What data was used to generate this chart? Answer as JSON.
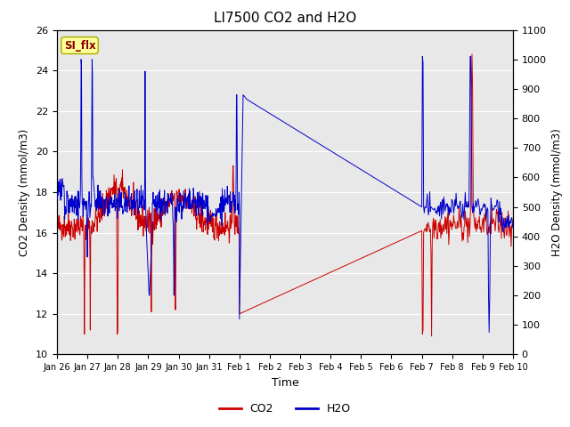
{
  "title": "LI7500 CO2 and H2O",
  "xlabel": "Time",
  "ylabel_left": "CO2 Density (mmol/m3)",
  "ylabel_right": "H2O Density (mmol/m3)",
  "ylim_left": [
    10,
    26
  ],
  "ylim_right": [
    0,
    1100
  ],
  "yticks_left": [
    10,
    12,
    14,
    16,
    18,
    20,
    22,
    24,
    26
  ],
  "yticks_right": [
    0,
    100,
    200,
    300,
    400,
    500,
    600,
    700,
    800,
    900,
    1000,
    1100
  ],
  "xtick_labels": [
    "Jan 26",
    "Jan 27",
    "Jan 28",
    "Jan 29",
    "Jan 30",
    "Jan 31",
    "Feb 1",
    "Feb 2",
    "Feb 3",
    "Feb 4",
    "Feb 5",
    "Feb 6",
    "Feb 7",
    "Feb 8",
    "Feb 9",
    "Feb 10"
  ],
  "color_co2": "#cc0000",
  "color_h2o": "#0000cc",
  "bg_color": "#e8e8e8",
  "annotation_text": "SI_flx",
  "annotation_color": "#8b0000",
  "annotation_bg": "#ffff99",
  "legend_co2": "CO2",
  "legend_h2o": "H2O",
  "figsize": [
    6.4,
    4.8
  ],
  "dpi": 100
}
